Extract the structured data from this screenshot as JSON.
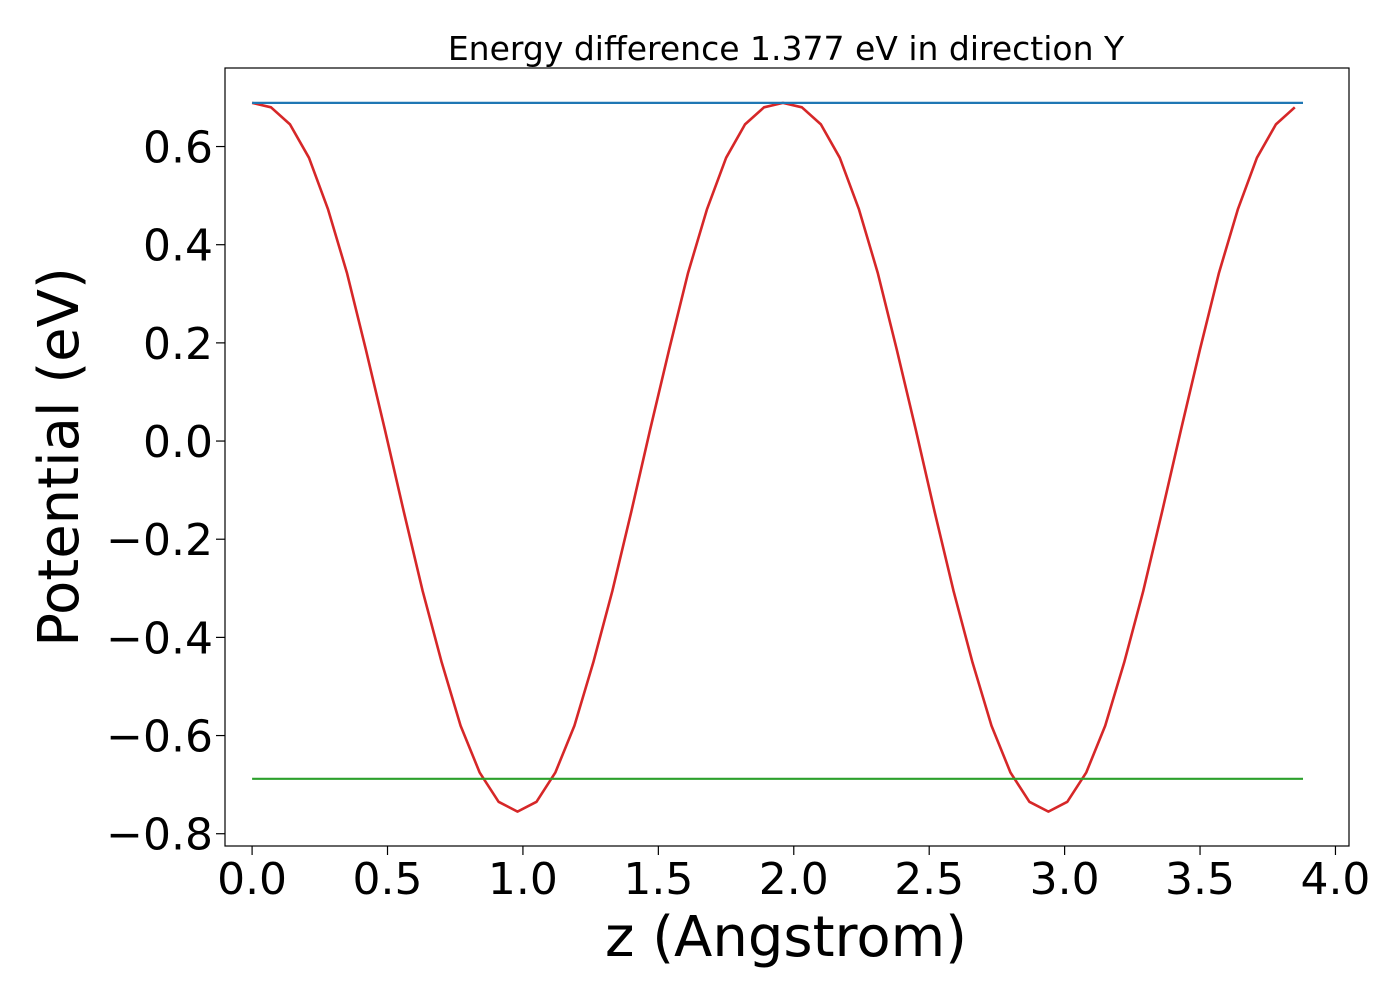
{
  "chart_data": {
    "type": "line",
    "title": "Energy difference 1.377 eV in direction Y",
    "xlabel": "z (Angstrom)",
    "ylabel": "Potential (eV)",
    "xlim": [
      -0.1,
      4.05
    ],
    "ylim": [
      -0.825,
      0.76
    ],
    "xticks": [
      0.0,
      0.5,
      1.0,
      1.5,
      2.0,
      2.5,
      3.0,
      3.5,
      4.0
    ],
    "xtick_labels": [
      "0.0",
      "0.5",
      "1.0",
      "1.5",
      "2.0",
      "2.5",
      "3.0",
      "3.5",
      "4.0"
    ],
    "yticks": [
      0.6,
      0.4,
      0.2,
      0.0,
      -0.2,
      -0.4,
      -0.6,
      -0.8
    ],
    "ytick_labels": [
      "0.6",
      "0.4",
      "0.2",
      "0.0",
      "−0.2",
      "−0.4",
      "−0.6",
      "−0.8"
    ],
    "grid": false,
    "legend": "none",
    "series": [
      {
        "color": "#d62728",
        "x": [
          0.0,
          0.07,
          0.14,
          0.21,
          0.28,
          0.35,
          0.42,
          0.49,
          0.56,
          0.63,
          0.7,
          0.77,
          0.84,
          0.91,
          0.98,
          1.05,
          1.12,
          1.19,
          1.26,
          1.33,
          1.4,
          1.47,
          1.54,
          1.61,
          1.68,
          1.75,
          1.82,
          1.89,
          1.96,
          2.03,
          2.1,
          2.17,
          2.24,
          2.31,
          2.38,
          2.45,
          2.52,
          2.59,
          2.66,
          2.73,
          2.8,
          2.87,
          2.94,
          3.01,
          3.08,
          3.15,
          3.22,
          3.29,
          3.36,
          3.43,
          3.5,
          3.57,
          3.64,
          3.71,
          3.78,
          3.85
        ],
        "y": [
          0.689,
          0.68,
          0.645,
          0.577,
          0.473,
          0.343,
          0.187,
          0.024,
          -0.144,
          -0.306,
          -0.451,
          -0.58,
          -0.675,
          -0.735,
          -0.755,
          -0.735,
          -0.675,
          -0.58,
          -0.451,
          -0.306,
          -0.144,
          0.024,
          0.187,
          0.343,
          0.473,
          0.577,
          0.645,
          0.68,
          0.689,
          0.68,
          0.645,
          0.577,
          0.473,
          0.343,
          0.187,
          0.024,
          -0.144,
          -0.306,
          -0.451,
          -0.58,
          -0.675,
          -0.735,
          -0.755,
          -0.735,
          -0.675,
          -0.58,
          -0.451,
          -0.306,
          -0.144,
          0.024,
          0.187,
          0.343,
          0.473,
          0.577,
          0.645,
          0.68
        ]
      },
      {
        "color": "#1f77b4",
        "x": [
          0.0,
          3.88
        ],
        "y": [
          0.689,
          0.689
        ]
      },
      {
        "color": "#2ca02c",
        "x": [
          0.0,
          3.88
        ],
        "y": [
          -0.688,
          -0.688
        ]
      }
    ]
  }
}
